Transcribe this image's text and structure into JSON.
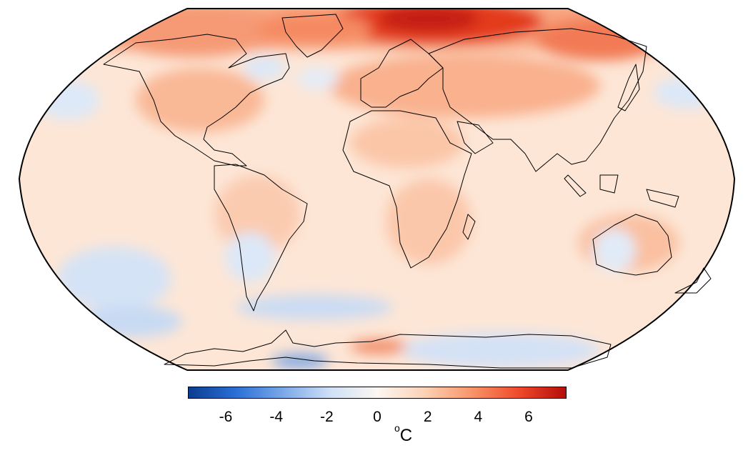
{
  "map": {
    "projection": "Robinson",
    "variable": "temperature anomaly",
    "colormap": [
      "#0b3c8f",
      "#2a6fd6",
      "#7aa8e8",
      "#cfe0f6",
      "#fbf7f2",
      "#fcd2b6",
      "#f8956a",
      "#ef4a2a",
      "#b40d0d"
    ],
    "ocean_base_color": "#fde6d6",
    "land_outline_color": "#000000"
  },
  "colorbar": {
    "ticks": [
      "-6",
      "-4",
      "-2",
      "0",
      "2",
      "4",
      "6"
    ],
    "tick_values": [
      -6,
      -4,
      -2,
      0,
      2,
      4,
      6
    ],
    "range": [
      -7.5,
      7.5
    ],
    "unit_symbol": "o",
    "unit_letter": "C"
  }
}
